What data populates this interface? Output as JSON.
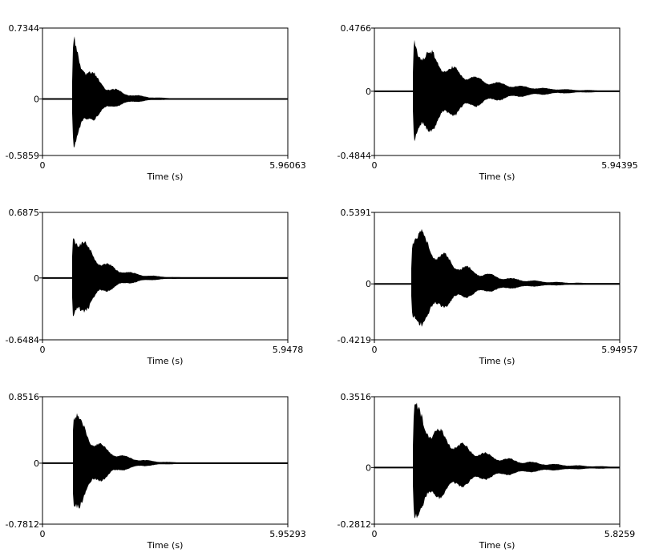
{
  "chart_data": [
    {
      "type": "area",
      "xlabel": "Time (s)",
      "xlim": [
        0,
        5.96063
      ],
      "ylim": [
        -0.5859,
        0.7344
      ],
      "x_tick_labels": [
        "0",
        "5.96063"
      ],
      "y_tick_labels": [
        "0.7344",
        "0",
        "-0.5859"
      ],
      "onset_s": 0.73,
      "decay_s": 0.55,
      "peak_pos": 0.7344,
      "peak_neg": -0.5859
    },
    {
      "type": "area",
      "xlabel": "Time (s)",
      "xlim": [
        0,
        5.94395
      ],
      "ylim": [
        -0.4844,
        0.4766
      ],
      "x_tick_labels": [
        "0",
        "5.94395"
      ],
      "y_tick_labels": [
        "0.4766",
        "0",
        "-0.4844"
      ],
      "onset_s": 0.94,
      "decay_s": 1.1,
      "peak_pos": 0.4766,
      "peak_neg": -0.4844
    },
    {
      "type": "area",
      "xlabel": "Time (s)",
      "xlim": [
        0,
        5.9478
      ],
      "ylim": [
        -0.6484,
        0.6875
      ],
      "x_tick_labels": [
        "0",
        "5.9478"
      ],
      "y_tick_labels": [
        "0.6875",
        "0",
        "-0.6484"
      ],
      "onset_s": 0.72,
      "decay_s": 0.6,
      "peak_pos": 0.6875,
      "peak_neg": -0.6484
    },
    {
      "type": "area",
      "xlabel": "Time (s)",
      "xlim": [
        0,
        5.94957
      ],
      "ylim": [
        -0.4219,
        0.5391
      ],
      "x_tick_labels": [
        "0",
        "5.94957"
      ],
      "y_tick_labels": [
        "0.5391",
        "0",
        "-0.4219"
      ],
      "onset_s": 0.9,
      "decay_s": 1.0,
      "peak_pos": 0.5391,
      "peak_neg": -0.4219
    },
    {
      "type": "area",
      "xlabel": "Time (s)",
      "xlim": [
        0,
        5.95293
      ],
      "ylim": [
        -0.7812,
        0.8516
      ],
      "x_tick_labels": [
        "0",
        "5.95293"
      ],
      "y_tick_labels": [
        "0.8516",
        "0",
        "-0.7812"
      ],
      "onset_s": 0.73,
      "decay_s": 0.6,
      "peak_pos": 0.8516,
      "peak_neg": -0.7812
    },
    {
      "type": "area",
      "xlabel": "Time (s)",
      "xlim": [
        0,
        5.8259
      ],
      "ylim": [
        -0.2812,
        0.3516
      ],
      "x_tick_labels": [
        "0",
        "5.8259"
      ],
      "y_tick_labels": [
        "0.3516",
        "0",
        "-0.2812"
      ],
      "onset_s": 0.92,
      "decay_s": 1.15,
      "peak_pos": 0.3516,
      "peak_neg": -0.2812
    }
  ]
}
